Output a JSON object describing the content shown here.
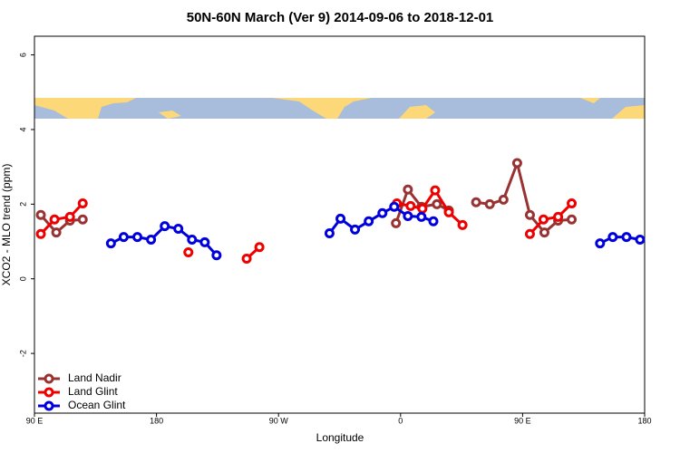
{
  "chart_data": {
    "type": "line",
    "title": "50N-60N March (Ver 9)   2014-09-06 to 2018-12-01",
    "x_label": "Longitude",
    "y_label": "XCO2 - MLO trend (ppm)",
    "xlim": [
      90,
      540
    ],
    "xticks": [
      {
        "value": 90,
        "label": "90 E"
      },
      {
        "value": 180,
        "label": "180"
      },
      {
        "value": 270,
        "label": "90 W"
      },
      {
        "value": 360,
        "label": "0"
      },
      {
        "value": 450,
        "label": "90 E"
      },
      {
        "value": 540,
        "label": "180"
      }
    ],
    "ylim": [
      -3.6,
      6.5
    ],
    "yticks": [
      -2,
      0,
      2,
      4,
      6
    ],
    "legend": "bottomleft",
    "series": [
      {
        "name": "Land Nadir",
        "color": "#993333",
        "x": [
          94.7,
          106.1,
          116.2,
          125.6,
          null,
          356.6,
          365.4,
          375.4,
          386.8,
          395.6,
          null,
          415.7,
          425.8,
          435.9,
          446.0,
          455.4,
          466.1,
          476.2,
          486.2
        ],
        "values": [
          1.71,
          1.24,
          1.56,
          1.59,
          null,
          1.49,
          2.39,
          1.93,
          2.0,
          1.83,
          null,
          2.05,
          2.0,
          2.12,
          3.1,
          1.71,
          1.24,
          1.56,
          1.59
        ]
      },
      {
        "name": "Land Glint",
        "color": "#ee0000",
        "x": [
          94.7,
          104.8,
          116.2,
          125.6,
          null,
          203.5,
          null,
          246.5,
          255.9,
          null,
          357.3,
          367.4,
          376.1,
          385.5,
          395.6,
          405.7,
          null,
          455.4,
          465.4,
          476.2,
          486.2
        ],
        "values": [
          1.2,
          1.59,
          1.66,
          2.02,
          null,
          0.71,
          null,
          0.54,
          0.85,
          null,
          2.02,
          1.95,
          1.88,
          2.37,
          1.78,
          1.44,
          null,
          1.2,
          1.59,
          1.66,
          2.02
        ]
      },
      {
        "name": "Ocean Glint",
        "color": "#0000dd",
        "x": [
          146.4,
          155.8,
          165.9,
          176.0,
          186.1,
          196.1,
          206.2,
          215.6,
          224.3,
          null,
          307.6,
          315.7,
          326.4,
          336.5,
          346.6,
          355.3,
          365.4,
          375.4,
          384.2,
          null,
          507.1,
          516.5,
          526.6,
          536.6
        ],
        "values": [
          0.95,
          1.12,
          1.12,
          1.05,
          1.41,
          1.34,
          1.05,
          0.98,
          0.63,
          null,
          1.22,
          1.61,
          1.32,
          1.54,
          1.76,
          1.93,
          1.68,
          1.66,
          1.54,
          null,
          0.95,
          1.12,
          1.12,
          1.05
        ]
      }
    ]
  }
}
